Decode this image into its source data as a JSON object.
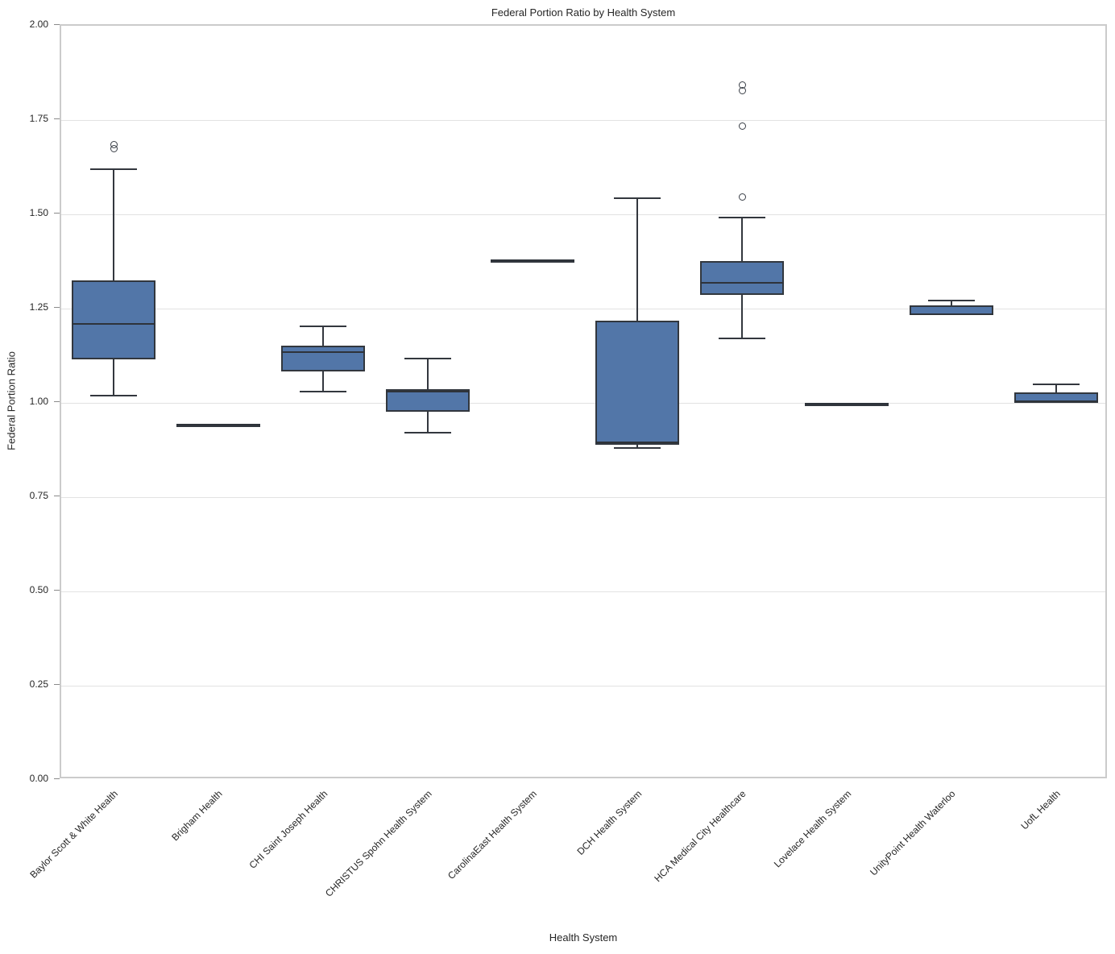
{
  "chart_data": {
    "type": "boxplot",
    "title": "Federal Portion Ratio by Health System",
    "xlabel": "Health System",
    "ylabel": "Federal Portion Ratio",
    "ylim": [
      0.0,
      2.0
    ],
    "ytick_step": 0.25,
    "ytick_labels": [
      "0.00",
      "0.25",
      "0.50",
      "0.75",
      "1.00",
      "1.25",
      "1.50",
      "1.75",
      "2.00"
    ],
    "grid": true,
    "legend": "none",
    "categories": [
      "Baylor Scott & White Health",
      "Brigham Health",
      "CHI Saint Joseph Health",
      "CHRISTUS Spohn Health System",
      "CarolinaEast Health System",
      "DCH Health System",
      "HCA Medical City Healthcare",
      "Lovelace Health System",
      "UnityPoint Health Waterloo",
      "UofL Health"
    ],
    "series": [
      {
        "category": "Baylor Scott & White Health",
        "whisker_low": 1.02,
        "q1": 1.115,
        "median": 1.21,
        "q3": 1.325,
        "whisker_high": 1.62,
        "outliers": [
          1.675,
          1.685
        ]
      },
      {
        "category": "Brigham Health",
        "whisker_low": 0.941,
        "q1": 0.941,
        "median": 0.943,
        "q3": 0.945,
        "whisker_high": 0.945,
        "outliers": []
      },
      {
        "category": "CHI Saint Joseph Health",
        "whisker_low": 1.03,
        "q1": 1.083,
        "median": 1.135,
        "q3": 1.152,
        "whisker_high": 1.203,
        "outliers": []
      },
      {
        "category": "CHRISTUS Spohn Health System",
        "whisker_low": 0.921,
        "q1": 0.976,
        "median": 1.03,
        "q3": 1.037,
        "whisker_high": 1.117,
        "outliers": []
      },
      {
        "category": "CarolinaEast Health System",
        "whisker_low": 1.378,
        "q1": 1.378,
        "median": 1.379,
        "q3": 1.38,
        "whisker_high": 1.38,
        "outliers": []
      },
      {
        "category": "DCH Health System",
        "whisker_low": 0.881,
        "q1": 0.888,
        "median": 0.895,
        "q3": 1.218,
        "whisker_high": 1.542,
        "outliers": []
      },
      {
        "category": "HCA Medical City Healthcare",
        "whisker_low": 1.171,
        "q1": 1.286,
        "median": 1.318,
        "q3": 1.377,
        "whisker_high": 1.492,
        "outliers": [
          1.545,
          1.735,
          1.828,
          1.842
        ]
      },
      {
        "category": "Lovelace Health System",
        "whisker_low": 0.997,
        "q1": 0.997,
        "median": 0.998,
        "q3": 0.999,
        "whisker_high": 0.999,
        "outliers": []
      },
      {
        "category": "UnityPoint Health Waterloo",
        "whisker_low": 1.231,
        "q1": 1.232,
        "median": 1.236,
        "q3": 1.258,
        "whisker_high": 1.272,
        "outliers": []
      },
      {
        "category": "UofL Health",
        "whisker_low": 0.999,
        "q1": 1.0,
        "median": 1.004,
        "q3": 1.028,
        "whisker_high": 1.049,
        "outliers": []
      }
    ],
    "colors": {
      "box_fill": "#5276a8",
      "box_edge": "#32373e",
      "median": "#2e333a",
      "grid": "#e2e2e2",
      "frame": "#cbcbcb",
      "text": "#262626"
    }
  }
}
